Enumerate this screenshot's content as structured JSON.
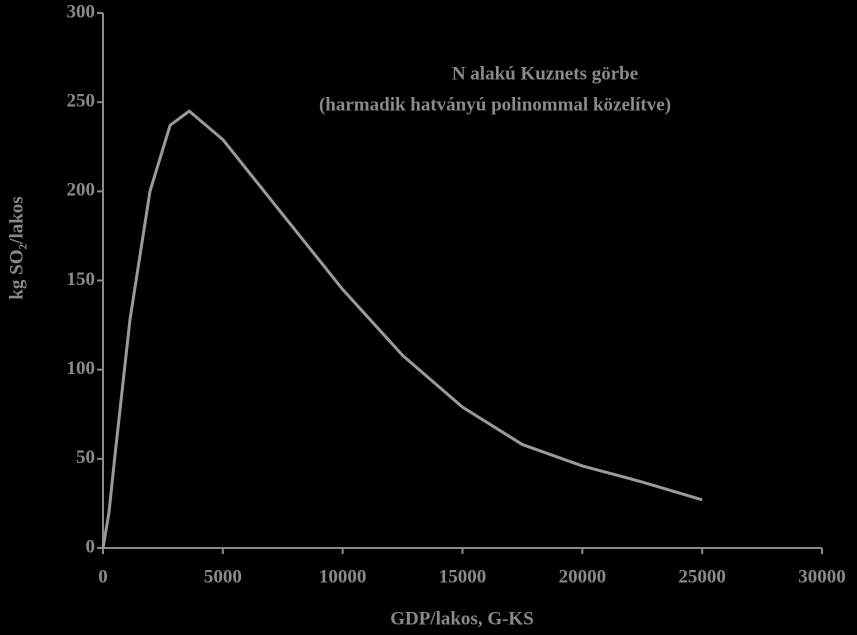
{
  "chart_data": {
    "type": "line",
    "title": "N alakú Kuznets görbe",
    "subtitle": "(harmadik hatványú polinommal közelítve)",
    "x_label": "GDP/lakos, G-KS",
    "y_label": "kg SO₂/lakos",
    "x": [
      0,
      250,
      500,
      1125,
      1960,
      2800,
      3600,
      5000,
      7500,
      10000,
      12500,
      15000,
      17500,
      20000,
      22500,
      25000
    ],
    "series": [
      {
        "name": "Kuznets",
        "color": "#9a9a9a",
        "values": [
          0,
          20,
          52,
          128,
          200,
          237,
          245,
          229,
          187,
          145,
          108,
          79,
          58,
          46,
          37,
          27
        ]
      }
    ],
    "xlim": [
      0,
      30000
    ],
    "xticks": [
      0,
      5000,
      10000,
      15000,
      20000,
      25000,
      30000
    ],
    "ylim": [
      0,
      300
    ],
    "yticks": [
      0,
      50,
      100,
      150,
      200,
      250,
      300
    ]
  }
}
